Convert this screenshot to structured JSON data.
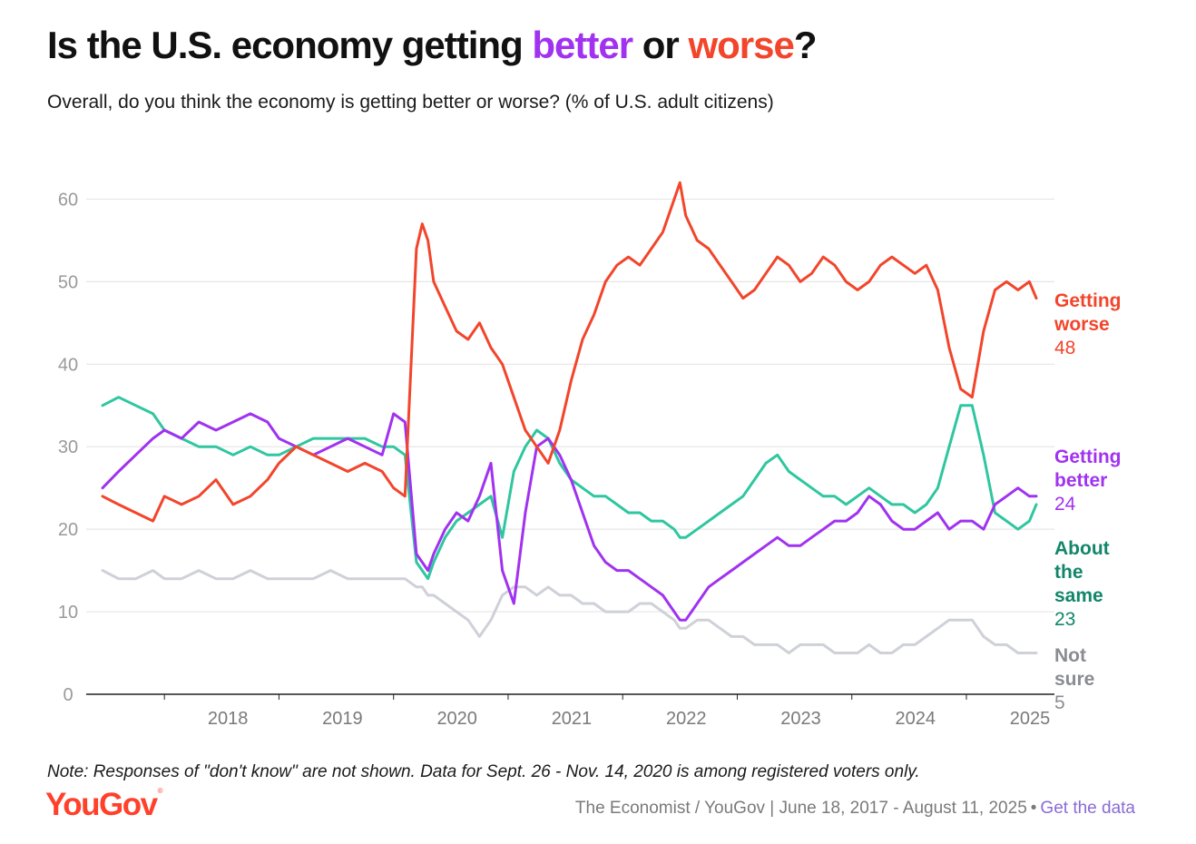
{
  "header": {
    "title_prefix": "Is the U.S. economy getting ",
    "title_better": "better",
    "title_mid": " or ",
    "title_worse": "worse",
    "title_suffix": "?",
    "subtitle": "Overall, do you think the economy is getting better or worse? (% of U.S. adult citizens)"
  },
  "footer": {
    "note": "Note: Responses of \"don't know\" are not shown. Data for Sept. 26 - Nov. 14, 2020 is among registered voters only.",
    "logo": "YouGov",
    "source": "The Economist / YouGov | June 18, 2017 - August 11, 2025",
    "link": "Get the data"
  },
  "colors": {
    "worse": "#f2452b",
    "better": "#a032f0",
    "same": "#2fc6a0",
    "same_label": "#12866a",
    "notsure": "#cfd1d8",
    "notsure_label": "#8a8c92",
    "grid": "#e6e6e6",
    "axis": "#222222",
    "tick": "#9a9a9a"
  },
  "chart_data": {
    "type": "line",
    "x_unit": "year",
    "xlim": [
      2017.46,
      2025.61
    ],
    "ylim": [
      0,
      65
    ],
    "yticks": [
      "0",
      "10",
      "20",
      "30",
      "40",
      "50",
      "60"
    ],
    "xticks": [
      "2018",
      "2019",
      "2020",
      "2021",
      "2022",
      "2023",
      "2024",
      "2025"
    ],
    "grid": "horizontal",
    "legend": "direct labels at right end",
    "series": [
      {
        "key": "worse",
        "name_line1": "Getting",
        "name_line2": "worse",
        "last_value": "48",
        "x": [
          2017.46,
          2017.6,
          2017.75,
          2017.9,
          2018.0,
          2018.15,
          2018.3,
          2018.45,
          2018.6,
          2018.75,
          2018.9,
          2019.0,
          2019.15,
          2019.3,
          2019.45,
          2019.6,
          2019.75,
          2019.9,
          2020.0,
          2020.1,
          2020.2,
          2020.25,
          2020.3,
          2020.35,
          2020.45,
          2020.55,
          2020.65,
          2020.75,
          2020.85,
          2020.95,
          2021.05,
          2021.15,
          2021.25,
          2021.35,
          2021.45,
          2021.55,
          2021.65,
          2021.75,
          2021.85,
          2021.95,
          2022.05,
          2022.15,
          2022.25,
          2022.35,
          2022.45,
          2022.5,
          2022.55,
          2022.65,
          2022.75,
          2022.85,
          2022.95,
          2023.05,
          2023.15,
          2023.25,
          2023.35,
          2023.45,
          2023.55,
          2023.65,
          2023.75,
          2023.85,
          2023.95,
          2024.05,
          2024.15,
          2024.25,
          2024.35,
          2024.45,
          2024.55,
          2024.65,
          2024.75,
          2024.85,
          2024.95,
          2025.05,
          2025.15,
          2025.25,
          2025.35,
          2025.45,
          2025.55,
          2025.61
        ],
        "y": [
          24,
          23,
          22,
          21,
          24,
          23,
          24,
          26,
          23,
          24,
          26,
          28,
          30,
          29,
          28,
          27,
          28,
          27,
          25,
          24,
          54,
          57,
          55,
          50,
          47,
          44,
          43,
          45,
          42,
          40,
          36,
          32,
          30,
          28,
          32,
          38,
          43,
          46,
          50,
          52,
          53,
          52,
          54,
          56,
          60,
          62,
          58,
          55,
          54,
          52,
          50,
          48,
          49,
          51,
          53,
          52,
          50,
          51,
          53,
          52,
          50,
          49,
          50,
          52,
          53,
          52,
          51,
          52,
          49,
          42,
          37,
          36,
          44,
          49,
          50,
          49,
          50,
          48
        ]
      },
      {
        "key": "better",
        "name_line1": "Getting",
        "name_line2": "better",
        "last_value": "24",
        "x": [
          2017.46,
          2017.6,
          2017.75,
          2017.9,
          2018.0,
          2018.15,
          2018.3,
          2018.45,
          2018.6,
          2018.75,
          2018.9,
          2019.0,
          2019.15,
          2019.3,
          2019.45,
          2019.6,
          2019.75,
          2019.9,
          2020.0,
          2020.1,
          2020.2,
          2020.25,
          2020.3,
          2020.35,
          2020.45,
          2020.55,
          2020.65,
          2020.75,
          2020.85,
          2020.95,
          2021.05,
          2021.15,
          2021.25,
          2021.35,
          2021.45,
          2021.55,
          2021.65,
          2021.75,
          2021.85,
          2021.95,
          2022.05,
          2022.15,
          2022.25,
          2022.35,
          2022.45,
          2022.5,
          2022.55,
          2022.65,
          2022.75,
          2022.85,
          2022.95,
          2023.05,
          2023.15,
          2023.25,
          2023.35,
          2023.45,
          2023.55,
          2023.65,
          2023.75,
          2023.85,
          2023.95,
          2024.05,
          2024.15,
          2024.25,
          2024.35,
          2024.45,
          2024.55,
          2024.65,
          2024.75,
          2024.85,
          2024.95,
          2025.05,
          2025.15,
          2025.25,
          2025.35,
          2025.45,
          2025.55,
          2025.61
        ],
        "y": [
          25,
          27,
          29,
          31,
          32,
          31,
          33,
          32,
          33,
          34,
          33,
          31,
          30,
          29,
          30,
          31,
          30,
          29,
          34,
          33,
          17,
          16,
          15,
          17,
          20,
          22,
          21,
          24,
          28,
          15,
          11,
          22,
          30,
          31,
          29,
          26,
          22,
          18,
          16,
          15,
          15,
          14,
          13,
          12,
          10,
          9,
          9,
          11,
          13,
          14,
          15,
          16,
          17,
          18,
          19,
          18,
          18,
          19,
          20,
          21,
          21,
          22,
          24,
          23,
          21,
          20,
          20,
          21,
          22,
          20,
          21,
          21,
          20,
          23,
          24,
          25,
          24,
          24
        ]
      },
      {
        "key": "same",
        "name_line1": "About",
        "name_line2": "the",
        "name_line3": "same",
        "last_value": "23",
        "x": [
          2017.46,
          2017.6,
          2017.75,
          2017.9,
          2018.0,
          2018.15,
          2018.3,
          2018.45,
          2018.6,
          2018.75,
          2018.9,
          2019.0,
          2019.15,
          2019.3,
          2019.45,
          2019.6,
          2019.75,
          2019.9,
          2020.0,
          2020.1,
          2020.2,
          2020.25,
          2020.3,
          2020.35,
          2020.45,
          2020.55,
          2020.65,
          2020.75,
          2020.85,
          2020.95,
          2021.05,
          2021.15,
          2021.25,
          2021.35,
          2021.45,
          2021.55,
          2021.65,
          2021.75,
          2021.85,
          2021.95,
          2022.05,
          2022.15,
          2022.25,
          2022.35,
          2022.45,
          2022.5,
          2022.55,
          2022.65,
          2022.75,
          2022.85,
          2022.95,
          2023.05,
          2023.15,
          2023.25,
          2023.35,
          2023.45,
          2023.55,
          2023.65,
          2023.75,
          2023.85,
          2023.95,
          2024.05,
          2024.15,
          2024.25,
          2024.35,
          2024.45,
          2024.55,
          2024.65,
          2024.75,
          2024.85,
          2024.95,
          2025.05,
          2025.15,
          2025.25,
          2025.35,
          2025.45,
          2025.55,
          2025.61
        ],
        "y": [
          35,
          36,
          35,
          34,
          32,
          31,
          30,
          30,
          29,
          30,
          29,
          29,
          30,
          31,
          31,
          31,
          31,
          30,
          30,
          29,
          16,
          15,
          14,
          16,
          19,
          21,
          22,
          23,
          24,
          19,
          27,
          30,
          32,
          31,
          28,
          26,
          25,
          24,
          24,
          23,
          22,
          22,
          21,
          21,
          20,
          19,
          19,
          20,
          21,
          22,
          23,
          24,
          26,
          28,
          29,
          27,
          26,
          25,
          24,
          24,
          23,
          24,
          25,
          24,
          23,
          23,
          22,
          23,
          25,
          30,
          35,
          35,
          29,
          22,
          21,
          20,
          21,
          23
        ]
      },
      {
        "key": "notsure",
        "name_line1": "Not",
        "name_line2": "sure",
        "last_value": "5",
        "x": [
          2017.46,
          2017.6,
          2017.75,
          2017.9,
          2018.0,
          2018.15,
          2018.3,
          2018.45,
          2018.6,
          2018.75,
          2018.9,
          2019.0,
          2019.15,
          2019.3,
          2019.45,
          2019.6,
          2019.75,
          2019.9,
          2020.0,
          2020.1,
          2020.2,
          2020.25,
          2020.3,
          2020.35,
          2020.45,
          2020.55,
          2020.65,
          2020.75,
          2020.85,
          2020.95,
          2021.05,
          2021.15,
          2021.25,
          2021.35,
          2021.45,
          2021.55,
          2021.65,
          2021.75,
          2021.85,
          2021.95,
          2022.05,
          2022.15,
          2022.25,
          2022.35,
          2022.45,
          2022.5,
          2022.55,
          2022.65,
          2022.75,
          2022.85,
          2022.95,
          2023.05,
          2023.15,
          2023.25,
          2023.35,
          2023.45,
          2023.55,
          2023.65,
          2023.75,
          2023.85,
          2023.95,
          2024.05,
          2024.15,
          2024.25,
          2024.35,
          2024.45,
          2024.55,
          2024.65,
          2024.75,
          2024.85,
          2024.95,
          2025.05,
          2025.15,
          2025.25,
          2025.35,
          2025.45,
          2025.55,
          2025.61
        ],
        "y": [
          15,
          14,
          14,
          15,
          14,
          14,
          15,
          14,
          14,
          15,
          14,
          14,
          14,
          14,
          15,
          14,
          14,
          14,
          14,
          14,
          13,
          13,
          12,
          12,
          11,
          10,
          9,
          7,
          9,
          12,
          13,
          13,
          12,
          13,
          12,
          12,
          11,
          11,
          10,
          10,
          10,
          11,
          11,
          10,
          9,
          8,
          8,
          9,
          9,
          8,
          7,
          7,
          6,
          6,
          6,
          5,
          6,
          6,
          6,
          5,
          5,
          5,
          6,
          5,
          5,
          6,
          6,
          7,
          8,
          9,
          9,
          9,
          7,
          6,
          6,
          5,
          5,
          5
        ]
      }
    ]
  }
}
